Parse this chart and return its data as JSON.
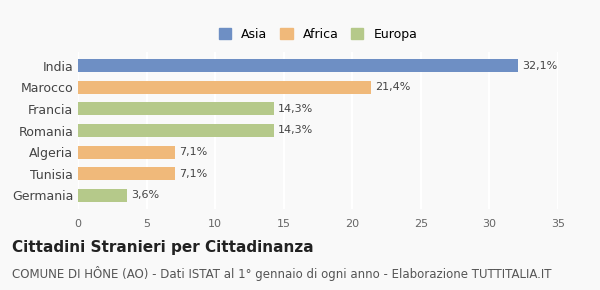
{
  "categories": [
    "India",
    "Marocco",
    "Francia",
    "Romania",
    "Algeria",
    "Tunisia",
    "Germania"
  ],
  "values": [
    32.1,
    21.4,
    14.3,
    14.3,
    7.1,
    7.1,
    3.6
  ],
  "labels": [
    "32,1%",
    "21,4%",
    "14,3%",
    "14,3%",
    "7,1%",
    "7,1%",
    "3,6%"
  ],
  "colors": [
    "#6e8fc4",
    "#f0b97a",
    "#b5c98a",
    "#b5c98a",
    "#f0b97a",
    "#f0b97a",
    "#b5c98a"
  ],
  "legend": [
    {
      "label": "Asia",
      "color": "#6e8fc4"
    },
    {
      "label": "Africa",
      "color": "#f0b97a"
    },
    {
      "label": "Europa",
      "color": "#b5c98a"
    }
  ],
  "xlim": [
    0,
    35
  ],
  "xticks": [
    0,
    5,
    10,
    15,
    20,
    25,
    30,
    35
  ],
  "title": "Cittadini Stranieri per Cittadinanza",
  "subtitle": "COMUNE DI HÔNE (AO) - Dati ISTAT al 1° gennaio di ogni anno - Elaborazione TUTTITALIA.IT",
  "background_color": "#f9f9f9",
  "grid_color": "#ffffff",
  "title_fontsize": 11,
  "subtitle_fontsize": 8.5,
  "bar_height": 0.6
}
